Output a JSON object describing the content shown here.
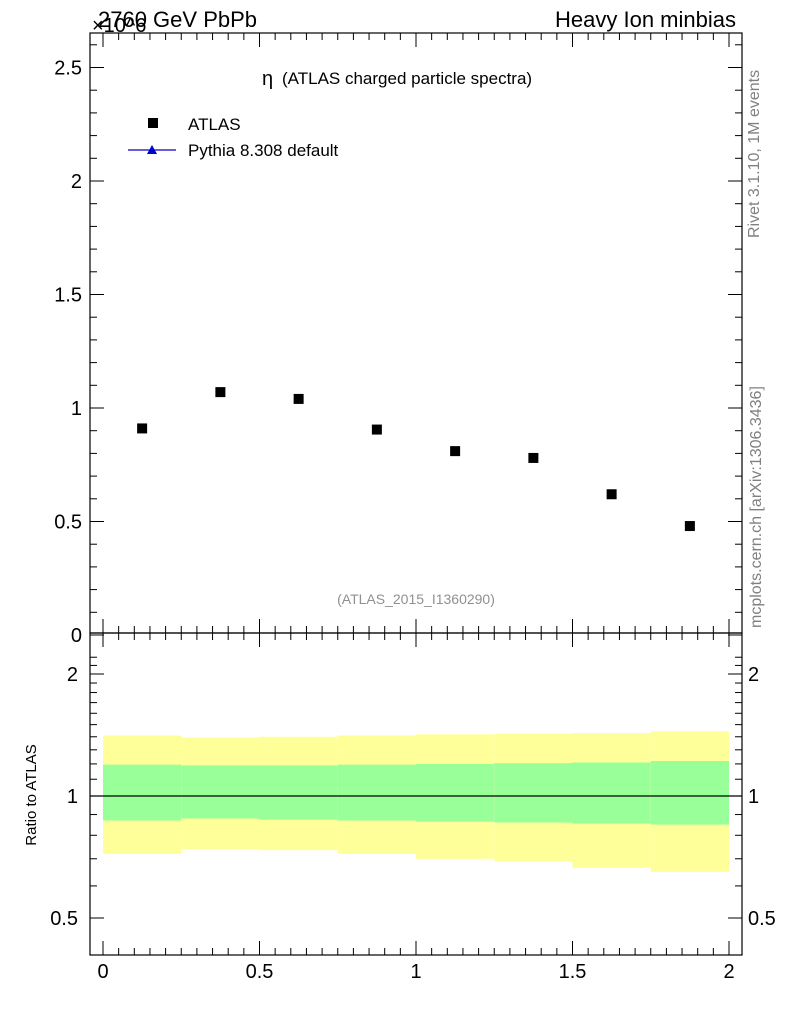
{
  "header": {
    "left_title": "2760 GeV PbPb",
    "right_title": "Heavy Ion minbias",
    "exponent_label": "×10^6"
  },
  "side_labels": {
    "rivet": "Rivet 3.1.10,  1M events",
    "mcplots": "mcplots.cern.ch [arXiv:1306.3436]"
  },
  "colors": {
    "data_marker": "#000000",
    "mc_line": "#0000cc",
    "band_inner": "#99ff99",
    "band_outer": "#ffff99",
    "watermark": "#909090"
  },
  "chart_data": [
    {
      "type": "scatter",
      "title": "η (ATLAS charged particle spectra)",
      "title_symbol": "η",
      "title_text": "(ATLAS charged particle spectra)",
      "analysis_id": "(ATLAS_2015_I1360290)",
      "legend": [
        {
          "name": "ATLAS",
          "marker": "square"
        },
        {
          "name": "Pythia 8.308 default",
          "marker": "triangle-line"
        }
      ],
      "legend_placement": "top-left",
      "xlim": [
        0,
        2
      ],
      "ylim": [
        0,
        2.65
      ],
      "y_scale_exponent": 6,
      "y_ticks": [
        0,
        0.5,
        1,
        1.5,
        2,
        2.5
      ],
      "y_tick_labels": [
        "0",
        "0.5",
        "1",
        "1.5",
        "2",
        "2.5"
      ],
      "series": [
        {
          "name": "ATLAS",
          "x": [
            0.125,
            0.375,
            0.625,
            0.875,
            1.125,
            1.375,
            1.625,
            1.875
          ],
          "values": [
            0.91,
            1.07,
            1.04,
            0.905,
            0.81,
            0.78,
            0.62,
            0.48
          ]
        }
      ]
    },
    {
      "type": "area",
      "ylabel": "Ratio to ATLAS",
      "xlim": [
        0,
        2
      ],
      "ylim": [
        0.35,
        2.3
      ],
      "x_ticks": [
        0,
        0.5,
        1,
        1.5,
        2
      ],
      "x_tick_labels": [
        "0",
        "0.5",
        "1",
        "1.5",
        "2"
      ],
      "y_ticks": [
        0.5,
        1,
        2
      ],
      "y_tick_labels": [
        "0.5",
        "1",
        "2"
      ],
      "reference_line": 1,
      "bins": [
        0,
        0.25,
        0.5,
        0.75,
        1.0,
        1.25,
        1.5,
        1.75,
        2.0
      ],
      "band_inner_lo": [
        0.87,
        0.88,
        0.875,
        0.87,
        0.865,
        0.86,
        0.855,
        0.85
      ],
      "band_inner_hi": [
        1.195,
        1.19,
        1.19,
        1.195,
        1.2,
        1.205,
        1.21,
        1.22
      ],
      "band_outer_lo": [
        0.72,
        0.74,
        0.735,
        0.72,
        0.7,
        0.69,
        0.665,
        0.65
      ],
      "band_outer_hi": [
        1.41,
        1.395,
        1.4,
        1.41,
        1.42,
        1.425,
        1.43,
        1.445
      ]
    }
  ]
}
